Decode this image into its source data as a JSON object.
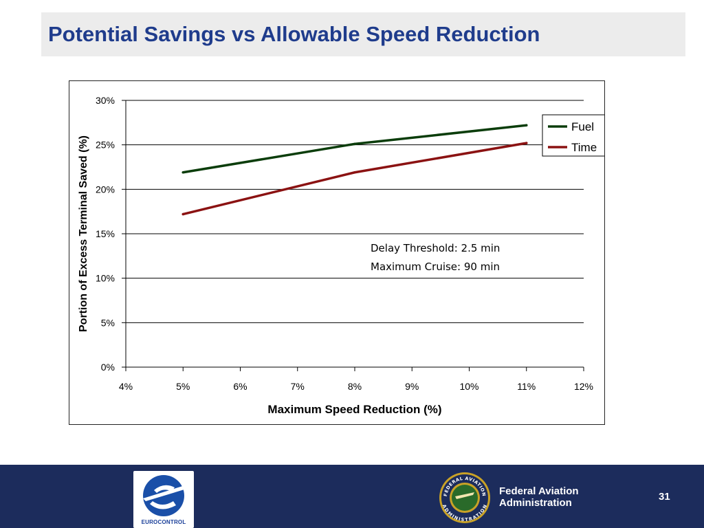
{
  "slide": {
    "title": "Potential Savings vs Allowable Speed Reduction",
    "page_number": "31"
  },
  "footer": {
    "left_logo_text": "EUROCONTROL",
    "org_line1": "Federal Aviation",
    "org_line2": "Administration",
    "seal_top_text": "FEDERAL AVIATION",
    "seal_bottom_text": "ADMINISTRATION",
    "background_color": "#1c2c5c"
  },
  "chart_data": {
    "type": "line",
    "title": "",
    "xlabel": "Maximum Speed Reduction (%)",
    "ylabel": "Portion of Excess Terminal Saved (%)",
    "xlim": [
      4,
      12
    ],
    "ylim": [
      0,
      30
    ],
    "x_ticks": [
      4,
      5,
      6,
      7,
      8,
      9,
      10,
      11,
      12
    ],
    "x_tick_labels": [
      "4%",
      "5%",
      "6%",
      "7%",
      "8%",
      "9%",
      "10%",
      "11%",
      "12%"
    ],
    "y_ticks": [
      0,
      5,
      10,
      15,
      20,
      25,
      30
    ],
    "y_tick_labels": [
      "0%",
      "5%",
      "10%",
      "15%",
      "20%",
      "25%",
      "30%"
    ],
    "grid": "horizontal",
    "legend_position": "top-right",
    "series": [
      {
        "name": "Fuel",
        "color": "#0b3d0b",
        "x": [
          5,
          8,
          11
        ],
        "y": [
          21.9,
          25.1,
          27.2
        ]
      },
      {
        "name": "Time",
        "color": "#8b1212",
        "x": [
          5,
          8,
          11
        ],
        "y": [
          17.2,
          21.9,
          25.2
        ]
      }
    ],
    "annotations": [
      "Delay Threshold: 2.5 min",
      "Maximum Cruise: 90 min"
    ]
  }
}
